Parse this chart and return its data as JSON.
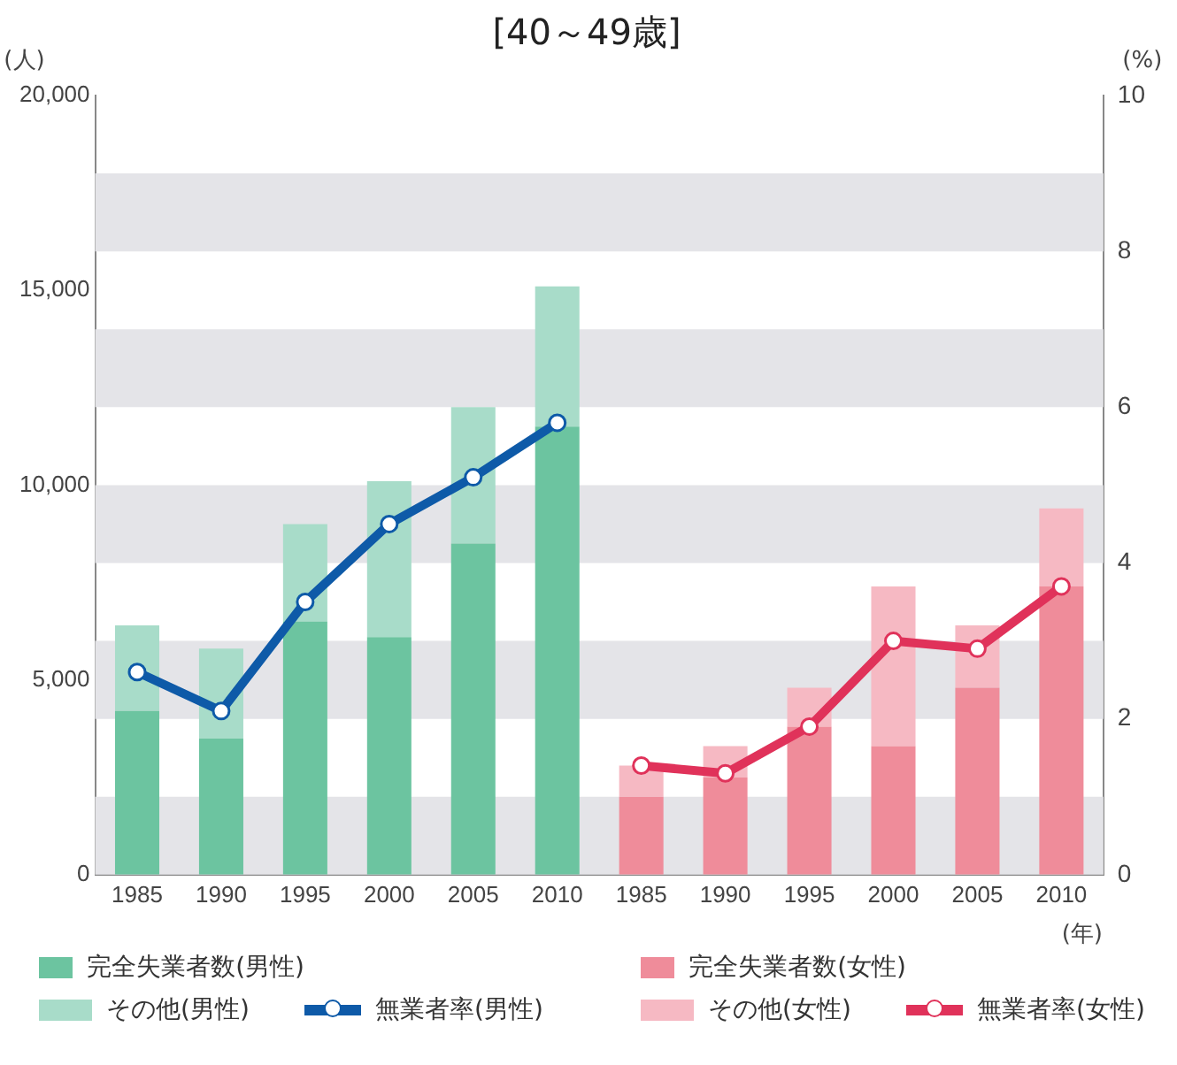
{
  "chart_data": {
    "type": "bar",
    "title": "[40～49歳]",
    "ylabel": "(人)",
    "y2label": "(%)",
    "xlabel": "(年)",
    "categories": [
      "1985",
      "1990",
      "1995",
      "2000",
      "2005",
      "2010",
      "1985",
      "1990",
      "1995",
      "2000",
      "2005",
      "2010"
    ],
    "stacked": true,
    "series": [
      {
        "name": "完全失業者数(男性)",
        "color": "#6cc4a0",
        "values": [
          4200,
          3500,
          6500,
          6100,
          8500,
          11500,
          null,
          null,
          null,
          null,
          null,
          null
        ]
      },
      {
        "name": "その他(男性)",
        "color": "#a8dcc9",
        "values": [
          2200,
          2300,
          2500,
          4000,
          3500,
          3600,
          null,
          null,
          null,
          null,
          null,
          null
        ]
      },
      {
        "name": "無業者率(男性)",
        "type": "line",
        "axis": "y2",
        "color": "#0e5aa8",
        "values": [
          2.6,
          2.1,
          3.5,
          4.5,
          5.1,
          5.8,
          null,
          null,
          null,
          null,
          null,
          null
        ]
      },
      {
        "name": "完全失業者数(女性)",
        "color": "#ef8c9a",
        "values": [
          null,
          null,
          null,
          null,
          null,
          null,
          2000,
          2500,
          3800,
          3300,
          4800,
          7400
        ]
      },
      {
        "name": "その他(女性)",
        "color": "#f6b9c3",
        "values": [
          null,
          null,
          null,
          null,
          null,
          null,
          800,
          800,
          1000,
          4100,
          1600,
          2000
        ]
      },
      {
        "name": "無業者率(女性)",
        "type": "line",
        "axis": "y2",
        "color": "#e0325a",
        "values": [
          null,
          null,
          null,
          null,
          null,
          null,
          1.4,
          1.3,
          1.9,
          3.0,
          2.9,
          3.7
        ]
      }
    ],
    "ylim": [
      0,
      20000
    ],
    "yticks": [
      0,
      {
        "value": 5000,
        "label": "5,000"
      },
      {
        "value": 10000,
        "label": "10,000"
      },
      {
        "value": 15000,
        "label": "15,000"
      },
      {
        "value": 20000,
        "label": "20,000"
      }
    ],
    "y2lim": [
      0,
      10
    ],
    "y2ticks": [
      0,
      2,
      4,
      6,
      8,
      10
    ],
    "bands": [
      {
        "axis": "y2",
        "from": 0,
        "to": 1,
        "color": "#e4e4e8"
      },
      {
        "axis": "y2",
        "from": 2,
        "to": 3,
        "color": "#e4e4e8"
      },
      {
        "axis": "y2",
        "from": 4,
        "to": 5,
        "color": "#e4e4e8"
      },
      {
        "axis": "y2",
        "from": 6,
        "to": 7,
        "color": "#e4e4e8"
      },
      {
        "axis": "y2",
        "from": 8,
        "to": 9,
        "color": "#e4e4e8"
      }
    ],
    "grid": false,
    "legend": "bottom",
    "marker": "circle",
    "line_style": "solid"
  }
}
